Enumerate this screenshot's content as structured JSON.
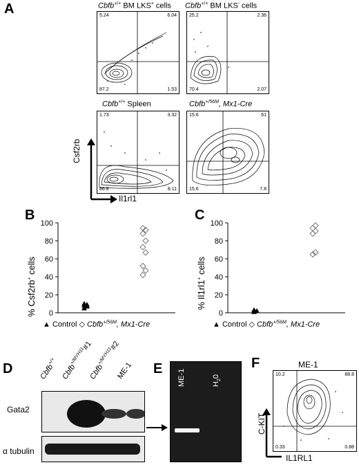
{
  "panel_a": {
    "letter": "A",
    "plots": [
      {
        "title_genotype": "Cbfb",
        "title_sup": "+/+",
        "title_rest": " BM LKS",
        "title_sup2": "+",
        "title_end": " cells",
        "q_tl": "5.24",
        "q_tr": "6.04",
        "q_bl": "87.2",
        "q_br": "1.53"
      },
      {
        "title_genotype": "Cbfb",
        "title_sup": "+/+",
        "title_rest": " BM LKS",
        "title_sup2": "-",
        "title_end": " cells",
        "q_tl": "25.2",
        "q_tr": "2.36",
        "q_bl": "70.4",
        "q_br": "2.07"
      },
      {
        "title_genotype": "Cbfb",
        "title_sup": "+/+",
        "title_rest": " Spleen",
        "title_sup2": "",
        "title_end": "",
        "q_tl": "1.73",
        "q_tr": "3.32",
        "q_bl": "86.8",
        "q_br": "8.11"
      },
      {
        "title_genotype": "Cbfb",
        "title_sup": "+/56M",
        "title_rest": ", Mx1-Cre",
        "title_sup2": "",
        "title_end": "",
        "q_tl": "15.6",
        "q_tr": "61",
        "q_bl": "15.6",
        "q_br": "7.8"
      }
    ],
    "y_axis": "Csf2rb",
    "x_axis": "Il1rl1"
  },
  "panel_b": {
    "letter": "B",
    "ylabel_pre": "% Csf2rb",
    "ylabel_sup": "+",
    "ylabel_post": " cells",
    "legend_control": "Control",
    "legend_mut_pre": "Cbfb",
    "legend_mut_sup": "+/56M",
    "legend_mut_post": ", Mx1-Cre"
  },
  "panel_c": {
    "letter": "C",
    "ylabel_pre": "% Il1rl1",
    "ylabel_sup": "+",
    "ylabel_post": " cells",
    "legend_control": "Control",
    "legend_mut_pre": "Cbfb",
    "legend_mut_sup": "+/56M",
    "legend_mut_post": ", Mx1-Cre"
  },
  "chart_data": [
    {
      "type": "scatter",
      "panel": "B",
      "ylabel": "% Csf2rb+ cells",
      "ylim": [
        0,
        100
      ],
      "yticks": [
        0,
        20,
        40,
        60,
        80,
        100
      ],
      "series": [
        {
          "name": "Control",
          "marker": "filled-triangle",
          "values": [
            5,
            7,
            8,
            9,
            10
          ]
        },
        {
          "name": "Cbfb+/56M, Mx1-Cre",
          "marker": "open-diamond",
          "values": [
            42,
            47,
            52,
            67,
            73,
            80,
            88,
            92,
            94
          ]
        }
      ]
    },
    {
      "type": "scatter",
      "panel": "C",
      "ylabel": "% Il1rl1+ cells",
      "ylim": [
        0,
        100
      ],
      "yticks": [
        0,
        20,
        40,
        60,
        80,
        100
      ],
      "series": [
        {
          "name": "Control",
          "marker": "filled-triangle",
          "values": [
            1,
            2,
            3
          ]
        },
        {
          "name": "Cbfb+/56M, Mx1-Cre",
          "marker": "open-diamond",
          "values": [
            65,
            67,
            88,
            91,
            94,
            97
          ]
        }
      ]
    }
  ],
  "panel_d": {
    "letter": "D",
    "lanes": [
      {
        "pre": "Cbfb",
        "sup": "+/+",
        "post": ""
      },
      {
        "pre": "Cbfb",
        "sup": "+/MYH11",
        "post": "#1"
      },
      {
        "pre": "Cbfb",
        "sup": "+/MYH11",
        "post": "#2"
      },
      {
        "pre": "ME-1",
        "sup": "",
        "post": ""
      }
    ],
    "row1": "Gata2",
    "row2": "α tubulin"
  },
  "panel_e": {
    "letter": "E",
    "lane1": "ME-1",
    "lane2_pre": "H",
    "lane2_sub": "2",
    "lane2_post": "0"
  },
  "panel_f": {
    "letter": "F",
    "title": "ME-1",
    "q_tl": "10.2",
    "q_tr": "88.8",
    "q_bl": "0.33",
    "q_br": "0.88",
    "y_axis": "C-KIT",
    "x_axis": "IL1RL1"
  }
}
